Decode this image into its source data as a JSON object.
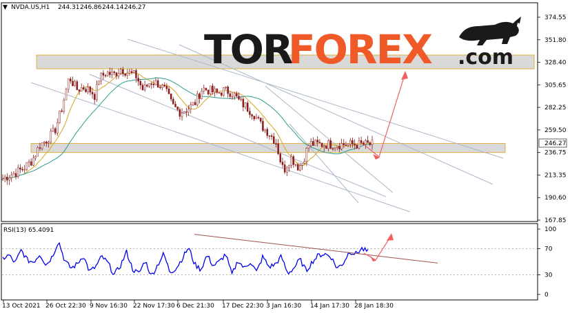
{
  "header": {
    "symbol": "NVDA.US,H1",
    "open": "244.31",
    "high": "246.86",
    "low": "244.14",
    "close": "246.27",
    "menu_glyph": "▼"
  },
  "logo": {
    "tor": "TOR",
    "forex": "FOREX",
    "dotcom": ".com",
    "icon": "bull-icon"
  },
  "rsi_label": "RSI(13) 65.4091",
  "colors": {
    "candle": "#8b1a1a",
    "ma_fast": "#d9a520",
    "ma_slow": "#2a9d8f",
    "rsi_line": "#0000ee",
    "trend_line": "#aab7c8",
    "forecast_arrow": "#f06060",
    "rsi_trend": "#a0504a",
    "zone_fill": "#d9d9d9",
    "zone_border": "#e0b040",
    "logo_dark": "#1a1a1a",
    "logo_orange": "#f05a28"
  },
  "chart_data": [
    {
      "type": "candlestick",
      "symbol": "NVDA.US",
      "timeframe": "H1",
      "ylim": [
        167.85,
        374.55
      ],
      "y_ticks": [
        "374.55",
        "351.80",
        "328.40",
        "305.65",
        "282.25",
        "259.50",
        "236.75",
        "213.35",
        "190.60",
        "167.85"
      ],
      "x_ticks": [
        "13 Oct 2021",
        "26 Oct 22:30",
        "9 Nov 16:30",
        "22 Nov 17:30",
        "6 Dec 21:30",
        "17 Dec 22:30",
        "3 Jan 16:30",
        "14 Jan 17:30",
        "28 Jan 18:30"
      ],
      "last_price": "246.27",
      "close_path": [
        [
          0,
          210
        ],
        [
          0.02,
          214
        ],
        [
          0.04,
          217
        ],
        [
          0.06,
          222
        ],
        [
          0.08,
          229
        ],
        [
          0.1,
          244
        ],
        [
          0.12,
          250
        ],
        [
          0.14,
          258
        ],
        [
          0.16,
          282
        ],
        [
          0.18,
          314
        ],
        [
          0.2,
          301
        ],
        [
          0.22,
          303
        ],
        [
          0.24,
          299
        ],
        [
          0.25,
          294
        ],
        [
          0.26,
          312
        ],
        [
          0.28,
          318
        ],
        [
          0.3,
          316
        ],
        [
          0.32,
          322
        ],
        [
          0.34,
          318
        ],
        [
          0.36,
          315
        ],
        [
          0.38,
          300
        ],
        [
          0.4,
          309
        ],
        [
          0.42,
          307
        ],
        [
          0.44,
          300
        ],
        [
          0.46,
          284
        ],
        [
          0.48,
          278
        ],
        [
          0.5,
          281
        ],
        [
          0.52,
          287
        ],
        [
          0.54,
          302
        ],
        [
          0.56,
          300
        ],
        [
          0.58,
          297
        ],
        [
          0.6,
          300
        ],
        [
          0.62,
          298
        ],
        [
          0.64,
          289
        ],
        [
          0.66,
          283
        ],
        [
          0.68,
          276
        ],
        [
          0.7,
          264
        ],
        [
          0.72,
          257
        ],
        [
          0.74,
          247
        ],
        [
          0.75,
          231
        ],
        [
          0.76,
          218
        ],
        [
          0.78,
          232
        ],
        [
          0.8,
          222
        ],
        [
          0.81,
          226
        ],
        [
          0.83,
          246
        ],
        [
          0.85,
          245
        ]
      ],
      "support_zone": [
        236.75,
        246.0
      ],
      "resistance_zone": [
        322.0,
        336.0
      ]
    },
    {
      "type": "line",
      "name": "RSI(13) 65.4091",
      "ylim": [
        0,
        100
      ],
      "y_ticks": [
        "100",
        "70",
        "30",
        "0"
      ],
      "values": [
        55,
        60,
        48,
        68,
        52,
        50,
        62,
        45,
        58,
        82,
        52,
        40,
        46,
        60,
        35,
        42,
        58,
        48,
        30,
        44,
        65,
        38,
        32,
        52,
        28,
        45,
        62,
        34,
        40,
        55,
        72,
        46,
        38,
        60,
        44,
        50,
        62,
        30,
        52,
        40,
        50,
        34,
        58,
        42,
        46,
        58,
        32,
        40,
        54,
        36,
        50,
        60,
        62,
        58,
        40,
        48,
        66,
        62,
        70,
        65
      ]
    }
  ]
}
